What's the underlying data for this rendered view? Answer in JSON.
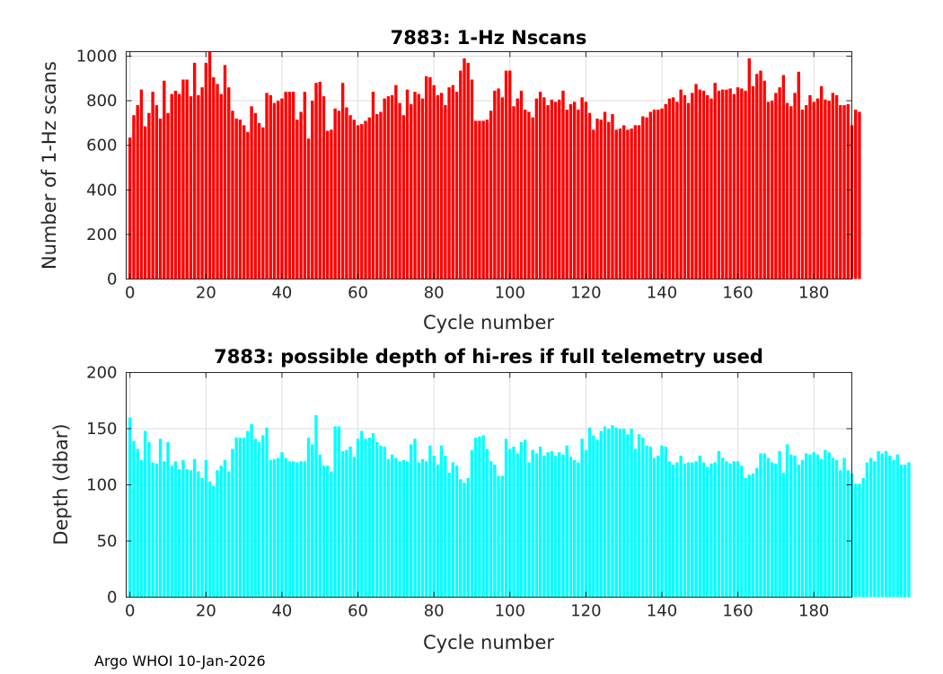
{
  "footer": "Argo WHOI 10-Jan-2026",
  "chart_data": [
    {
      "type": "bar",
      "title": "7883: 1-Hz Nscans",
      "xlabel": "Cycle number",
      "ylabel": "Number of 1-Hz scans",
      "xlim": [
        -1,
        190
      ],
      "ylim": [
        0,
        1020
      ],
      "xticks": [
        0,
        20,
        40,
        60,
        80,
        100,
        120,
        140,
        160,
        180
      ],
      "yticks": [
        0,
        200,
        400,
        600,
        800,
        1000
      ],
      "grid": true,
      "color": "#ff0000",
      "x_start": 0,
      "values": [
        635,
        735,
        780,
        850,
        685,
        745,
        840,
        780,
        720,
        890,
        745,
        830,
        845,
        830,
        895,
        895,
        820,
        970,
        825,
        860,
        970,
        1020,
        905,
        875,
        830,
        960,
        860,
        755,
        720,
        715,
        690,
        660,
        775,
        745,
        700,
        680,
        835,
        825,
        790,
        800,
        810,
        840,
        840,
        840,
        715,
        750,
        840,
        630,
        800,
        880,
        885,
        820,
        665,
        670,
        765,
        755,
        880,
        770,
        735,
        715,
        690,
        695,
        710,
        725,
        840,
        740,
        750,
        810,
        820,
        825,
        870,
        790,
        735,
        850,
        785,
        840,
        830,
        810,
        910,
        905,
        870,
        825,
        835,
        780,
        860,
        870,
        840,
        935,
        990,
        970,
        895,
        710,
        710,
        710,
        715,
        755,
        845,
        855,
        815,
        935,
        935,
        775,
        810,
        845,
        760,
        750,
        725,
        810,
        840,
        815,
        780,
        805,
        795,
        805,
        845,
        760,
        785,
        795,
        760,
        815,
        795,
        745,
        670,
        720,
        715,
        750,
        705,
        740,
        670,
        675,
        690,
        670,
        675,
        690,
        690,
        730,
        725,
        750,
        760,
        760,
        765,
        785,
        810,
        815,
        795,
        850,
        825,
        790,
        835,
        875,
        850,
        845,
        825,
        810,
        880,
        845,
        850,
        850,
        855,
        830,
        860,
        855,
        845,
        990,
        865,
        920,
        935,
        890,
        795,
        800,
        835,
        860,
        915,
        790,
        775,
        835,
        930,
        760,
        780,
        825,
        795,
        810,
        865,
        805,
        800,
        835,
        825,
        780,
        780,
        785,
        690,
        760,
        750
      ]
    },
    {
      "type": "bar",
      "title": "7883: possible depth of hi-res if full telemetry used",
      "xlabel": "Cycle number",
      "ylabel": "Depth (dbar)",
      "xlim": [
        -1,
        190
      ],
      "ylim": [
        0,
        200
      ],
      "xticks": [
        0,
        20,
        40,
        60,
        80,
        100,
        120,
        140,
        160,
        180
      ],
      "yticks": [
        0,
        50,
        100,
        150,
        200
      ],
      "grid": true,
      "color": "#00ffff",
      "x_start": 0,
      "values": [
        160,
        139,
        132,
        122,
        148,
        138,
        120,
        119,
        141,
        121,
        138,
        117,
        121,
        114,
        122,
        114,
        113,
        123,
        112,
        106,
        122,
        103,
        99,
        113,
        117,
        122,
        112,
        132,
        142,
        142,
        142,
        148,
        154,
        141,
        138,
        144,
        151,
        122,
        123,
        124,
        129,
        124,
        121,
        121,
        120,
        121,
        121,
        142,
        136,
        162,
        127,
        117,
        117,
        112,
        152,
        152,
        130,
        131,
        134,
        125,
        141,
        148,
        141,
        142,
        146,
        138,
        135,
        134,
        123,
        127,
        124,
        121,
        122,
        121,
        136,
        141,
        120,
        123,
        121,
        135,
        126,
        118,
        135,
        126,
        111,
        120,
        117,
        105,
        102,
        106,
        131,
        142,
        143,
        144,
        132,
        121,
        118,
        108,
        108,
        141,
        132,
        134,
        128,
        138,
        140,
        120,
        131,
        128,
        134,
        126,
        129,
        130,
        126,
        129,
        127,
        135,
        125,
        122,
        120,
        141,
        131,
        151,
        144,
        140,
        148,
        152,
        150,
        153,
        151,
        150,
        150,
        145,
        150,
        132,
        145,
        142,
        135,
        134,
        124,
        126,
        135,
        134,
        121,
        118,
        120,
        126,
        119,
        120,
        120,
        121,
        126,
        120,
        116,
        119,
        120,
        130,
        124,
        121,
        119,
        121,
        121,
        117,
        106,
        109,
        110,
        115,
        128,
        128,
        124,
        120,
        119,
        130,
        111,
        136,
        127,
        126,
        118,
        122,
        128,
        127,
        129,
        127,
        123,
        131,
        129,
        124,
        122,
        113,
        124,
        113,
        110,
        101,
        101,
        106,
        120,
        124,
        121,
        130,
        128,
        130,
        126,
        122,
        127,
        118,
        118,
        120
      ]
    }
  ]
}
